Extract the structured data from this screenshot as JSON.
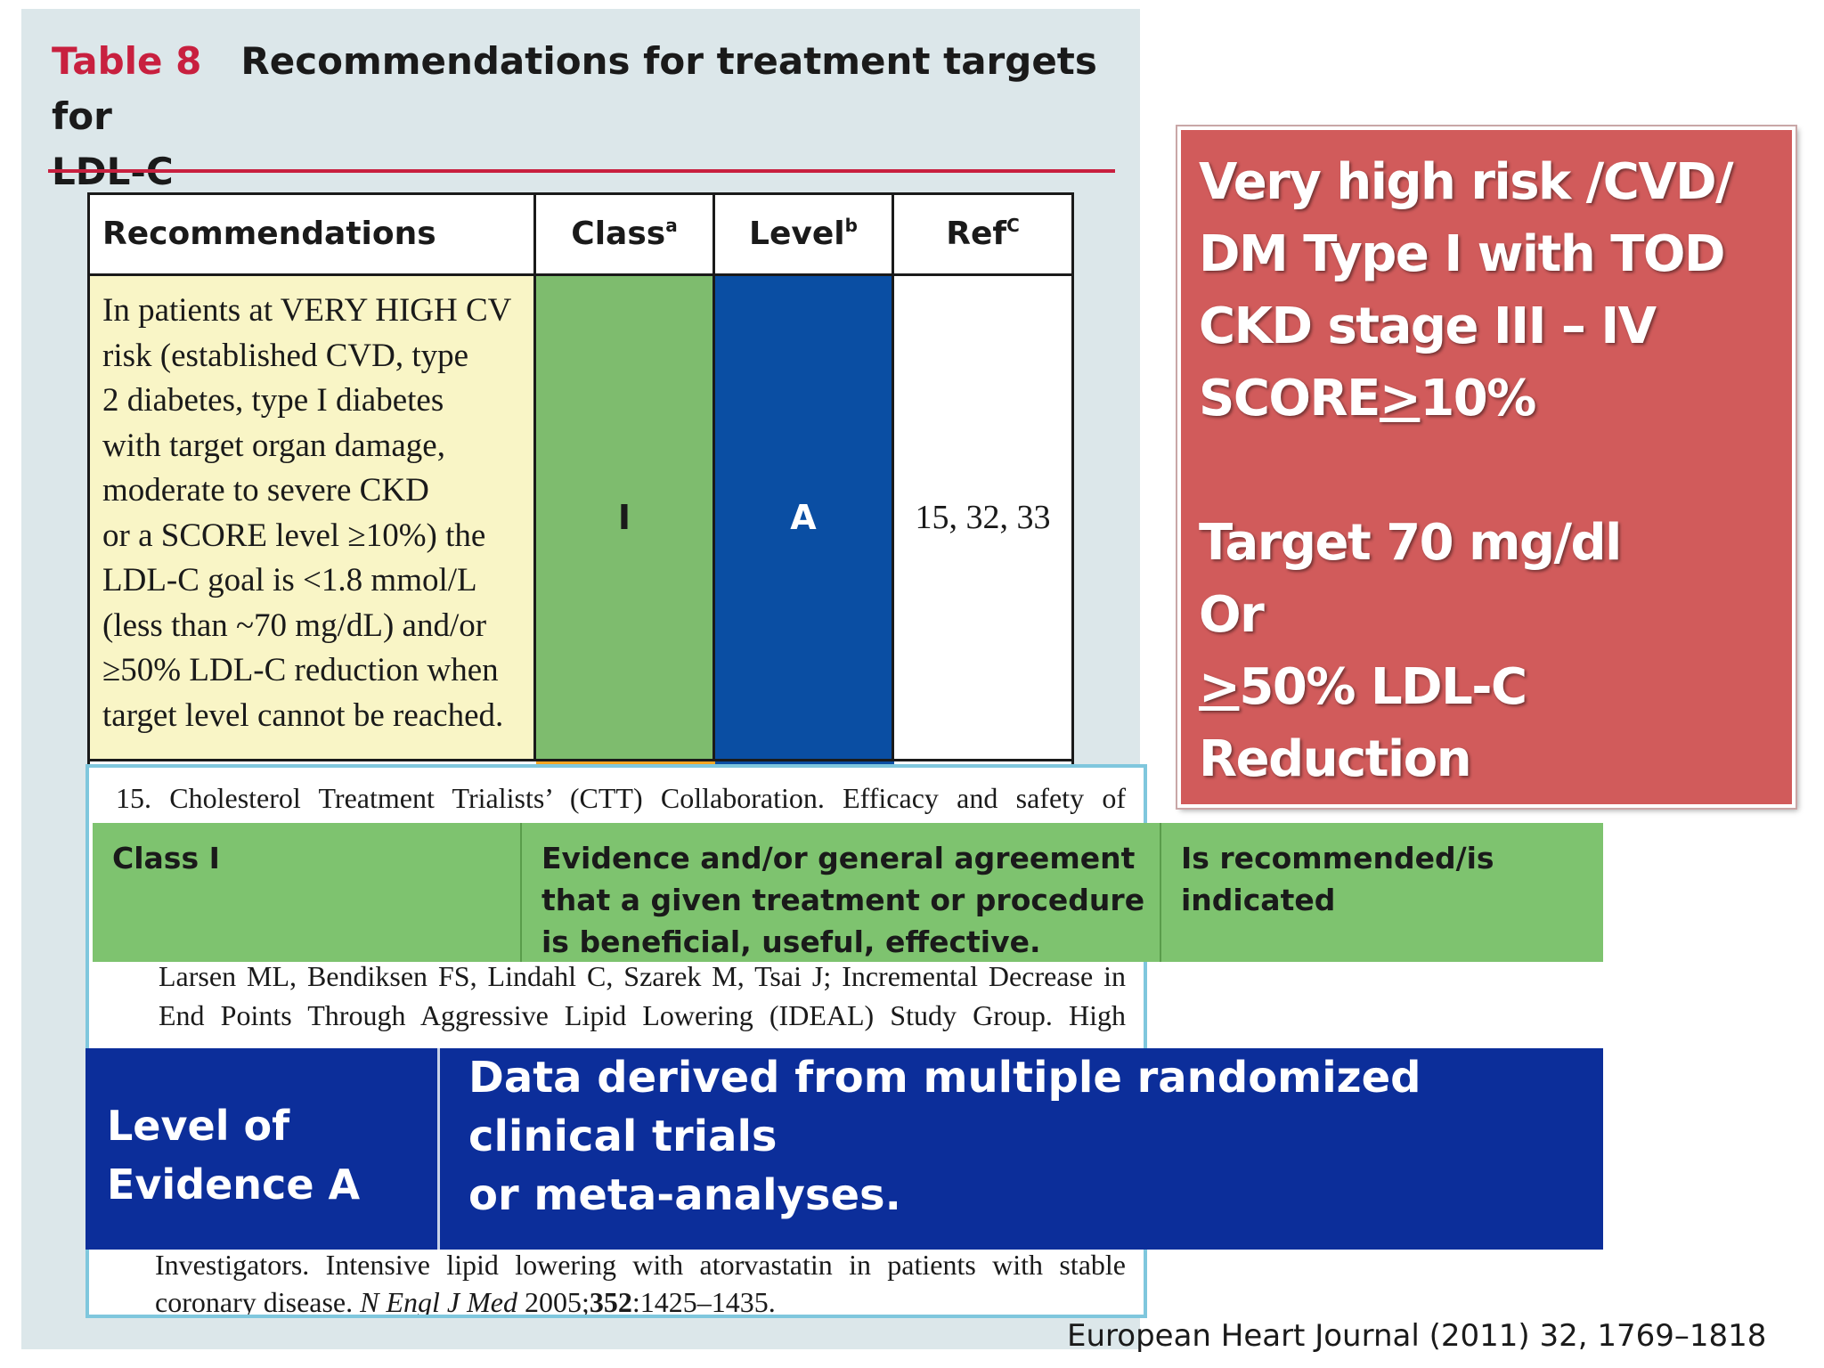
{
  "table": {
    "label": "Table 8",
    "title_line1": "Recommendations for treatment targets for",
    "title_line2": "LDL-C",
    "headers": {
      "recommendations": "Recommendations",
      "class": "Class",
      "class_sup": "a",
      "level": "Level",
      "level_sup": "b",
      "ref": "Ref",
      "ref_sup": "C"
    },
    "row": {
      "recommendation_lines": [
        "In patients at VERY HIGH CV",
        "risk (established CVD, type",
        "2 diabetes, type I diabetes",
        "with target organ damage,",
        "moderate to severe CKD",
        "or a SCORE level ≥10%) the",
        "LDL-C goal is <1.8 mmol/L",
        "(less than ~70 mg/dL) and/or",
        "≥50% LDL-C reduction when",
        "target level cannot be reached."
      ],
      "class": "I",
      "level": "A",
      "ref": "15, 32, 33"
    }
  },
  "references": {
    "top_line": "15.  Cholesterol Treatment Trialists’ (CTT) Collaboration. Efficacy and safety of",
    "mid_line1": "Larsen ML, Bendiksen FS, Lindahl C, Szarek M, Tsai J; Incremental Decrease in",
    "mid_line2": "End Points Through Aggressive Lipid Lowering (IDEAL) Study Group. High",
    "bottom_line1": "Investigators. Intensive lipid lowering with atorvastatin in patients with stable",
    "bottom_line2_pre": "coronary disease. ",
    "bottom_line2_journal": "N Engl J Med",
    "bottom_line2_year": " 2005;",
    "bottom_line2_vol": "352",
    "bottom_line2_pages": ":1425–1435."
  },
  "class_overlay": {
    "col1": "Class I",
    "col2_lines": [
      "Evidence and/or general agreement",
      "that a given treatment or procedure",
      "is beneficial, useful, effective."
    ],
    "col3_lines": [
      "Is recommended/is",
      "indicated"
    ]
  },
  "level_overlay": {
    "col1_lines": [
      "Level of",
      "Evidence A"
    ],
    "col2_lines": [
      "Data derived from multiple randomized",
      "clinical trials",
      "or meta-analyses."
    ]
  },
  "callout": {
    "line1": "Very high risk /CVD/",
    "line2": "DM Type I with TOD",
    "line3": "CKD stage III – IV",
    "line4_pre": "SCORE",
    "line4_ge": ">",
    "line4_post": "10%",
    "line5": "Target 70 mg/dl",
    "line6": "Or",
    "line7_ge": ">",
    "line7_post": "50% LDL-C Reduction"
  },
  "citation": "European Heart Journal (2011) 32, 1769–1818",
  "colors": {
    "title_accent": "#c8203f",
    "class_green": "#7ebc6e",
    "level_blue": "#0a4ea3",
    "recommendation_yellow": "#f9f5c6",
    "overlay_blue": "#0c2e9a",
    "callout_red": "#d15b5b",
    "ref_box_border": "#7fc7dd"
  }
}
